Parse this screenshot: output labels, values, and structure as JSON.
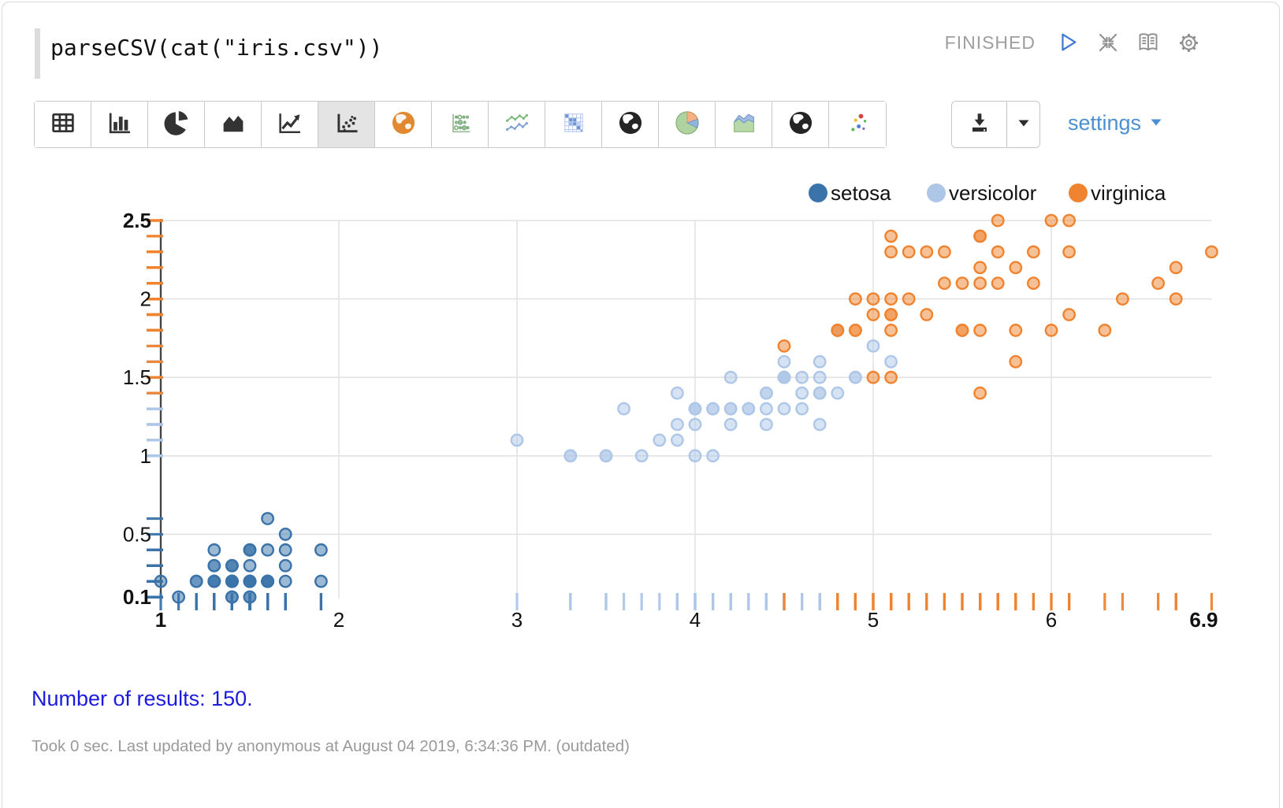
{
  "paragraph": {
    "code": "parseCSV(cat(\"iris.csv\"))",
    "status": "FINISHED",
    "control_icons": [
      "run-icon",
      "collapse-icon",
      "book-icon",
      "gear-icon"
    ]
  },
  "toolbar": {
    "items": [
      {
        "icon": "table-icon",
        "selected": false
      },
      {
        "icon": "bar-chart-icon",
        "selected": false
      },
      {
        "icon": "pie-chart-icon",
        "selected": false
      },
      {
        "icon": "area-chart-icon",
        "selected": false
      },
      {
        "icon": "line-chart-icon",
        "selected": false
      },
      {
        "icon": "scatter-chart-icon",
        "selected": true
      },
      {
        "icon": "globe-orange-icon",
        "selected": false
      },
      {
        "icon": "scatter-matrix-icon",
        "selected": false
      },
      {
        "icon": "multi-line-chart-icon",
        "selected": false
      },
      {
        "icon": "heatmap-icon",
        "selected": false
      },
      {
        "icon": "globe-dark-icon",
        "selected": false
      },
      {
        "icon": "pie-colored-icon",
        "selected": false
      },
      {
        "icon": "area-colored-icon",
        "selected": false
      },
      {
        "icon": "globe-dark2-icon",
        "selected": false
      },
      {
        "icon": "scatter-colored-icon",
        "selected": false
      }
    ]
  },
  "actions": {
    "download_icon": "download-icon",
    "download_caret_icon": "caret-down-icon",
    "settings_label": "settings"
  },
  "chart_data": {
    "type": "scatter",
    "title": "",
    "xlabel": "",
    "ylabel": "",
    "xlim": [
      1,
      6.9
    ],
    "ylim": [
      0.1,
      2.5
    ],
    "x_tick_labels": [
      "1",
      "2",
      "3",
      "4",
      "5",
      "6",
      "6.9"
    ],
    "x_tick_values": [
      1,
      2,
      3,
      4,
      5,
      6,
      6.9
    ],
    "y_tick_labels": [
      "0.1",
      "0.5",
      "1",
      "1.5",
      "2",
      "2.5"
    ],
    "y_tick_values": [
      0.1,
      0.5,
      1,
      1.5,
      2,
      2.5
    ],
    "grid": true,
    "legend_position": "top-right",
    "rug_marks": true,
    "series": [
      {
        "name": "setosa",
        "color": "#3a73a9",
        "points": [
          [
            1.4,
            0.2
          ],
          [
            1.4,
            0.2
          ],
          [
            1.3,
            0.2
          ],
          [
            1.5,
            0.2
          ],
          [
            1.4,
            0.2
          ],
          [
            1.7,
            0.4
          ],
          [
            1.4,
            0.3
          ],
          [
            1.5,
            0.2
          ],
          [
            1.4,
            0.2
          ],
          [
            1.5,
            0.1
          ],
          [
            1.5,
            0.2
          ],
          [
            1.6,
            0.2
          ],
          [
            1.4,
            0.1
          ],
          [
            1.1,
            0.1
          ],
          [
            1.2,
            0.2
          ],
          [
            1.5,
            0.4
          ],
          [
            1.3,
            0.4
          ],
          [
            1.4,
            0.3
          ],
          [
            1.7,
            0.3
          ],
          [
            1.5,
            0.3
          ],
          [
            1.7,
            0.2
          ],
          [
            1.5,
            0.4
          ],
          [
            1.0,
            0.2
          ],
          [
            1.7,
            0.5
          ],
          [
            1.9,
            0.2
          ],
          [
            1.6,
            0.2
          ],
          [
            1.6,
            0.4
          ],
          [
            1.5,
            0.2
          ],
          [
            1.4,
            0.2
          ],
          [
            1.6,
            0.2
          ],
          [
            1.6,
            0.2
          ],
          [
            1.5,
            0.4
          ],
          [
            1.5,
            0.1
          ],
          [
            1.4,
            0.2
          ],
          [
            1.5,
            0.2
          ],
          [
            1.2,
            0.2
          ],
          [
            1.3,
            0.2
          ],
          [
            1.4,
            0.1
          ],
          [
            1.3,
            0.2
          ],
          [
            1.5,
            0.2
          ],
          [
            1.3,
            0.3
          ],
          [
            1.3,
            0.3
          ],
          [
            1.3,
            0.2
          ],
          [
            1.6,
            0.6
          ],
          [
            1.9,
            0.4
          ],
          [
            1.4,
            0.3
          ],
          [
            1.6,
            0.2
          ],
          [
            1.4,
            0.2
          ],
          [
            1.5,
            0.2
          ],
          [
            1.4,
            0.2
          ]
        ]
      },
      {
        "name": "versicolor",
        "color": "#aec7e8",
        "points": [
          [
            4.7,
            1.4
          ],
          [
            4.5,
            1.5
          ],
          [
            4.9,
            1.5
          ],
          [
            4.0,
            1.3
          ],
          [
            4.6,
            1.5
          ],
          [
            4.5,
            1.3
          ],
          [
            4.7,
            1.6
          ],
          [
            3.3,
            1.0
          ],
          [
            4.6,
            1.3
          ],
          [
            3.9,
            1.4
          ],
          [
            3.5,
            1.0
          ],
          [
            4.2,
            1.5
          ],
          [
            4.0,
            1.0
          ],
          [
            4.7,
            1.4
          ],
          [
            3.6,
            1.3
          ],
          [
            4.4,
            1.4
          ],
          [
            4.5,
            1.5
          ],
          [
            4.1,
            1.0
          ],
          [
            4.5,
            1.5
          ],
          [
            3.9,
            1.1
          ],
          [
            4.8,
            1.8
          ],
          [
            4.0,
            1.3
          ],
          [
            4.9,
            1.5
          ],
          [
            4.7,
            1.2
          ],
          [
            4.3,
            1.3
          ],
          [
            4.4,
            1.4
          ],
          [
            4.8,
            1.4
          ],
          [
            5.0,
            1.7
          ],
          [
            4.5,
            1.5
          ],
          [
            3.5,
            1.0
          ],
          [
            3.8,
            1.1
          ],
          [
            3.7,
            1.0
          ],
          [
            3.9,
            1.2
          ],
          [
            5.1,
            1.6
          ],
          [
            4.5,
            1.5
          ],
          [
            4.5,
            1.6
          ],
          [
            4.7,
            1.5
          ],
          [
            4.4,
            1.3
          ],
          [
            4.1,
            1.3
          ],
          [
            4.0,
            1.3
          ],
          [
            4.4,
            1.2
          ],
          [
            4.6,
            1.4
          ],
          [
            4.0,
            1.2
          ],
          [
            3.3,
            1.0
          ],
          [
            4.2,
            1.3
          ],
          [
            4.2,
            1.2
          ],
          [
            4.2,
            1.3
          ],
          [
            4.3,
            1.3
          ],
          [
            3.0,
            1.1
          ],
          [
            4.1,
            1.3
          ]
        ]
      },
      {
        "name": "virginica",
        "color": "#f0832f",
        "points": [
          [
            6.0,
            2.5
          ],
          [
            5.1,
            1.9
          ],
          [
            5.9,
            2.1
          ],
          [
            5.6,
            1.8
          ],
          [
            5.8,
            2.2
          ],
          [
            6.6,
            2.1
          ],
          [
            4.5,
            1.7
          ],
          [
            6.3,
            1.8
          ],
          [
            5.8,
            1.8
          ],
          [
            6.1,
            2.5
          ],
          [
            5.1,
            2.0
          ],
          [
            5.3,
            1.9
          ],
          [
            5.5,
            2.1
          ],
          [
            5.0,
            2.0
          ],
          [
            5.1,
            2.4
          ],
          [
            5.3,
            2.3
          ],
          [
            5.5,
            1.8
          ],
          [
            6.7,
            2.2
          ],
          [
            6.9,
            2.3
          ],
          [
            5.0,
            1.5
          ],
          [
            5.7,
            2.3
          ],
          [
            4.9,
            2.0
          ],
          [
            6.7,
            2.0
          ],
          [
            4.9,
            1.8
          ],
          [
            5.7,
            2.1
          ],
          [
            6.0,
            1.8
          ],
          [
            4.8,
            1.8
          ],
          [
            4.9,
            1.8
          ],
          [
            5.6,
            2.1
          ],
          [
            5.8,
            1.6
          ],
          [
            6.1,
            1.9
          ],
          [
            6.4,
            2.0
          ],
          [
            5.6,
            2.2
          ],
          [
            5.1,
            1.5
          ],
          [
            5.6,
            1.4
          ],
          [
            6.1,
            2.3
          ],
          [
            5.6,
            2.4
          ],
          [
            5.5,
            1.8
          ],
          [
            4.8,
            1.8
          ],
          [
            5.4,
            2.1
          ],
          [
            5.6,
            2.4
          ],
          [
            5.1,
            2.3
          ],
          [
            5.1,
            1.9
          ],
          [
            5.9,
            2.3
          ],
          [
            5.7,
            2.5
          ],
          [
            5.2,
            2.3
          ],
          [
            5.0,
            1.9
          ],
          [
            5.2,
            2.0
          ],
          [
            5.4,
            2.3
          ],
          [
            5.1,
            1.8
          ]
        ]
      }
    ]
  },
  "results": {
    "text": "Number of results: 150."
  },
  "footer": {
    "text": "Took 0 sec. Last updated by anonymous at August 04 2019, 6:34:36 PM. (outdated)"
  }
}
